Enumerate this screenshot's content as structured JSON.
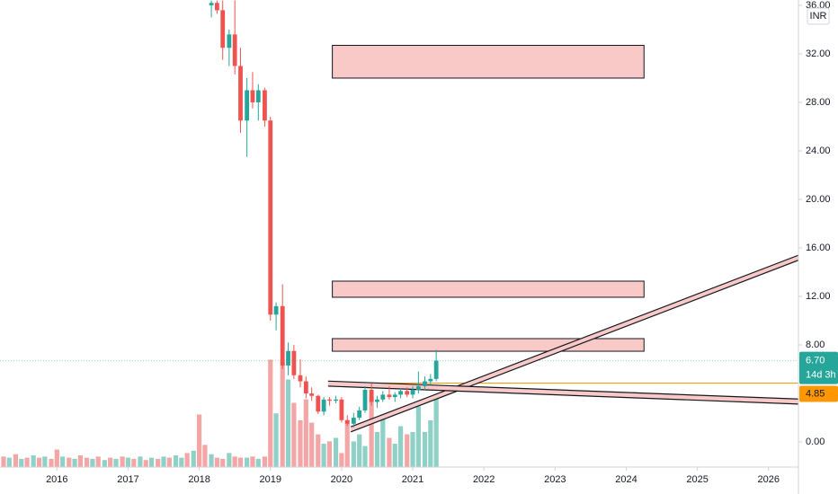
{
  "chart_data": {
    "type": "candlestick",
    "currency": "INR",
    "x": [
      2015.25,
      2015.33,
      2015.42,
      2015.5,
      2015.58,
      2015.67,
      2015.75,
      2015.83,
      2015.92,
      2016,
      2016.08,
      2016.17,
      2016.25,
      2016.33,
      2016.42,
      2016.5,
      2016.58,
      2016.67,
      2016.75,
      2016.83,
      2016.92,
      2017,
      2017.08,
      2017.17,
      2017.25,
      2017.33,
      2017.42,
      2017.5,
      2017.58,
      2017.67,
      2017.75,
      2017.83,
      2017.92,
      2018,
      2018.08,
      2018.17,
      2018.25,
      2018.33,
      2018.42,
      2018.5,
      2018.58,
      2018.67,
      2018.75,
      2018.83,
      2018.92,
      2019,
      2019.08,
      2019.17,
      2019.25,
      2019.33,
      2019.42,
      2019.5,
      2019.58,
      2019.67,
      2019.75,
      2019.83,
      2019.92,
      2020,
      2020.08,
      2020.17,
      2020.25,
      2020.33,
      2020.42,
      2020.5,
      2020.58,
      2020.67,
      2020.75,
      2020.83,
      2020.92,
      2021,
      2021.08,
      2021.17,
      2021.25,
      2021.33
    ],
    "open": [
      null,
      null,
      null,
      null,
      null,
      null,
      null,
      null,
      null,
      null,
      null,
      null,
      null,
      null,
      null,
      null,
      null,
      null,
      null,
      null,
      null,
      null,
      null,
      null,
      null,
      null,
      null,
      null,
      null,
      null,
      null,
      null,
      null,
      null,
      null,
      36.0,
      36.2,
      35.6,
      32.5,
      33.6,
      31.0,
      26.5,
      29.0,
      28.0,
      29.0,
      26.5,
      10.5,
      11.2,
      6.3,
      7.5,
      5.5,
      5.0,
      4.0,
      3.8,
      2.5,
      3.5,
      3.4,
      3.5,
      1.8,
      1.5,
      2.0,
      2.6,
      4.3,
      3.3,
      3.5,
      3.9,
      3.7,
      3.9,
      4.2,
      3.9,
      4.3,
      4.6,
      5.0,
      5.2
    ],
    "high": [
      null,
      null,
      null,
      null,
      null,
      null,
      null,
      null,
      null,
      null,
      null,
      null,
      null,
      null,
      null,
      null,
      null,
      null,
      null,
      null,
      null,
      null,
      null,
      null,
      null,
      null,
      null,
      null,
      null,
      null,
      null,
      null,
      null,
      null,
      null,
      36.4,
      36.4,
      36.4,
      34.0,
      36.4,
      32.5,
      30.0,
      30.5,
      29.5,
      29.2,
      26.8,
      11.5,
      13.0,
      8.2,
      8.0,
      6.8,
      5.4,
      4.5,
      3.9,
      3.7,
      3.7,
      3.8,
      3.7,
      2.2,
      2.4,
      2.9,
      4.6,
      4.8,
      3.8,
      4.2,
      4.6,
      4.1,
      4.4,
      4.5,
      4.6,
      5.8,
      5.4,
      5.6,
      7.6
    ],
    "low": [
      null,
      null,
      null,
      null,
      null,
      null,
      null,
      null,
      null,
      null,
      null,
      null,
      null,
      null,
      null,
      null,
      null,
      null,
      null,
      null,
      null,
      null,
      null,
      null,
      null,
      null,
      null,
      null,
      null,
      null,
      null,
      null,
      null,
      null,
      null,
      35.0,
      35.3,
      31.5,
      31.0,
      30.3,
      25.5,
      23.5,
      27.5,
      26.5,
      26.0,
      10.0,
      9.2,
      6.0,
      5.5,
      5.2,
      4.5,
      3.6,
      3.4,
      2.3,
      2.2,
      3.0,
      3.2,
      1.6,
      1.3,
      1.2,
      1.8,
      2.4,
      3.0,
      2.8,
      3.3,
      3.5,
      3.3,
      3.6,
      3.7,
      3.6,
      4.0,
      4.3,
      4.7,
      5.0
    ],
    "close": [
      null,
      null,
      null,
      null,
      null,
      null,
      null,
      null,
      null,
      null,
      null,
      null,
      null,
      null,
      null,
      null,
      null,
      null,
      null,
      null,
      null,
      null,
      null,
      null,
      null,
      null,
      null,
      null,
      null,
      null,
      null,
      null,
      null,
      null,
      null,
      36.2,
      35.6,
      32.5,
      33.6,
      31.0,
      26.5,
      29.0,
      28.0,
      29.0,
      26.5,
      10.5,
      11.2,
      6.3,
      7.5,
      5.5,
      5.0,
      4.0,
      3.8,
      2.5,
      3.5,
      3.4,
      3.5,
      1.8,
      1.5,
      2.0,
      2.6,
      4.3,
      3.3,
      3.5,
      3.9,
      3.7,
      3.9,
      4.2,
      3.9,
      4.3,
      4.6,
      5.0,
      5.2,
      6.7
    ],
    "volume": [
      9,
      8,
      11,
      7,
      8,
      10,
      8,
      9,
      7,
      15,
      9,
      8,
      7,
      10,
      8,
      7,
      9,
      6,
      8,
      7,
      9,
      8,
      7,
      9,
      6,
      8,
      7,
      9,
      8,
      10,
      8,
      12,
      14,
      45,
      19,
      11,
      8,
      7,
      12,
      9,
      8,
      8,
      9,
      7,
      9,
      92,
      46,
      92,
      75,
      55,
      40,
      58,
      38,
      28,
      20,
      22,
      25,
      12,
      40,
      22,
      28,
      18,
      60,
      30,
      45,
      25,
      20,
      35,
      28,
      30,
      52,
      30,
      40,
      59
    ],
    "volume_colors": [
      "#f4a6a6",
      "#8fd0c7",
      "#f4a6a6",
      "#8fd0c7",
      "#f4a6a6",
      "#8fd0c7",
      "#f4a6a6",
      "#8fd0c7",
      "#f4a6a6",
      "#f4a6a6",
      "#8fd0c7",
      "#f4a6a6",
      "#8fd0c7",
      "#f4a6a6",
      "#f4a6a6",
      "#8fd0c7",
      "#f4a6a6",
      "#8fd0c7",
      "#f4a6a6",
      "#8fd0c7",
      "#f4a6a6",
      "#8fd0c7",
      "#f4a6a6",
      "#8fd0c7",
      "#f4a6a6",
      "#8fd0c7",
      "#f4a6a6",
      "#8fd0c7",
      "#f4a6a6",
      "#8fd0c7",
      "#8fd0c7",
      "#f4a6a6",
      "#8fd0c7",
      "#f4a6a6",
      "#f4a6a6",
      "#8fd0c7",
      "#f4a6a6",
      "#f4a6a6",
      "#8fd0c7",
      "#f4a6a6",
      "#f4a6a6",
      "#8fd0c7",
      "#f4a6a6",
      "#8fd0c7",
      "#f4a6a6",
      "#f4a6a6",
      "#8fd0c7",
      "#f4a6a6",
      "#8fd0c7",
      "#f4a6a6",
      "#f4a6a6",
      "#f4a6a6",
      "#f4a6a6",
      "#f4a6a6",
      "#8fd0c7",
      "#f4a6a6",
      "#8fd0c7",
      "#f4a6a6",
      "#f4a6a6",
      "#8fd0c7",
      "#8fd0c7",
      "#8fd0c7",
      "#f4a6a6",
      "#8fd0c7",
      "#8fd0c7",
      "#f4a6a6",
      "#8fd0c7",
      "#8fd0c7",
      "#f4a6a6",
      "#8fd0c7",
      "#8fd0c7",
      "#8fd0c7",
      "#8fd0c7",
      "#8fd0c7"
    ],
    "up_color": "#26a69a",
    "down_color": "#ef5350",
    "xlim": [
      2015.2,
      2026.42
    ],
    "xticks": [
      2016,
      2017,
      2018,
      2019,
      2020,
      2021,
      2022,
      2023,
      2024,
      2025,
      2026
    ],
    "ylim": [
      -2.07,
      36.44
    ],
    "yticks": [
      {
        "value": 0,
        "label": "0.00"
      },
      {
        "value": 8,
        "label": "8.00"
      },
      {
        "value": 12,
        "label": "12.00"
      },
      {
        "value": 16,
        "label": "16.00"
      },
      {
        "value": 20,
        "label": "20.00"
      },
      {
        "value": 24,
        "label": "24.00"
      },
      {
        "value": 28,
        "label": "28.00"
      },
      {
        "value": 32,
        "label": "32.00"
      },
      {
        "value": 36,
        "label": "36.00"
      }
    ],
    "y2lim": [
      0,
      400
    ],
    "grid": false,
    "zones": [
      {
        "x": [
          2019.87,
          2024.25
        ],
        "y": [
          30.0,
          32.7
        ]
      },
      {
        "x": [
          2019.87,
          2024.25
        ],
        "y": [
          11.93,
          13.26
        ]
      },
      {
        "x": [
          2019.87,
          2024.25
        ],
        "y": [
          7.48,
          8.52
        ]
      }
    ],
    "trendlines": [
      {
        "x": [
          2020.13,
          2026.42
        ],
        "y": [
          1.04,
          15.19
        ]
      },
      {
        "x": [
          2019.81,
          2026.42
        ],
        "y": [
          4.81,
          3.33
        ]
      }
    ],
    "level": {
      "value": 4.85,
      "label": "4.85"
    },
    "last_price": {
      "value": 6.7,
      "label": "6.70"
    },
    "countdown": "14d 3h"
  }
}
